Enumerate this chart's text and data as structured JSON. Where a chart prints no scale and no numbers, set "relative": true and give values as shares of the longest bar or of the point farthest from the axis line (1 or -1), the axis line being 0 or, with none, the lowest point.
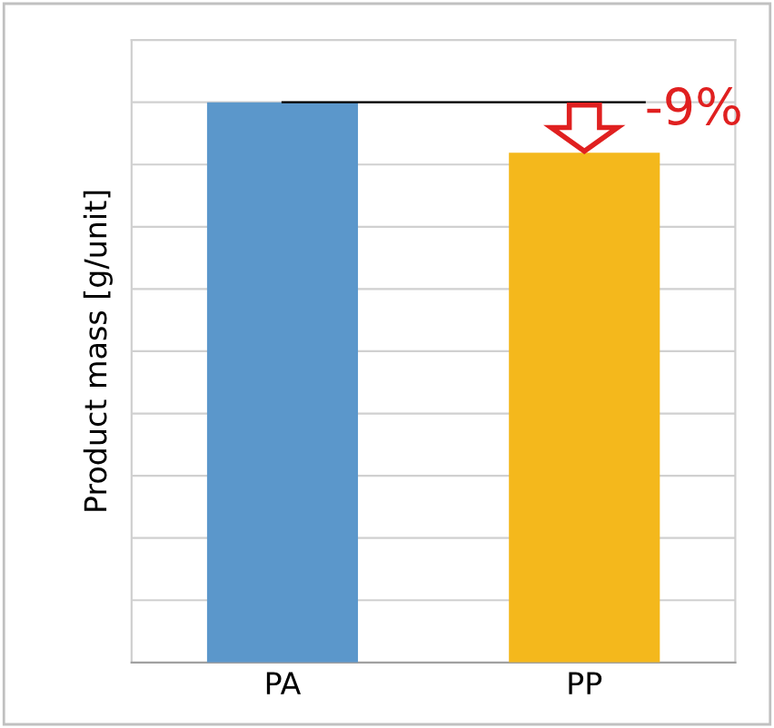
{
  "chart_data": {
    "type": "bar",
    "relative": true,
    "ylabel": "Product mass [g/unit]",
    "categories": [
      "PA",
      "PP"
    ],
    "values": [
      1,
      0.91
    ],
    "colors": [
      "#5b97cb",
      "#f4b81c"
    ],
    "grid": "y",
    "ref_lines": [
      {
        "axis": "y",
        "value": 1,
        "color": "#000000",
        "line_style": "solid"
      }
    ],
    "annotations": [
      {
        "text": "-9%",
        "x": "PP",
        "y": 1
      }
    ]
  }
}
